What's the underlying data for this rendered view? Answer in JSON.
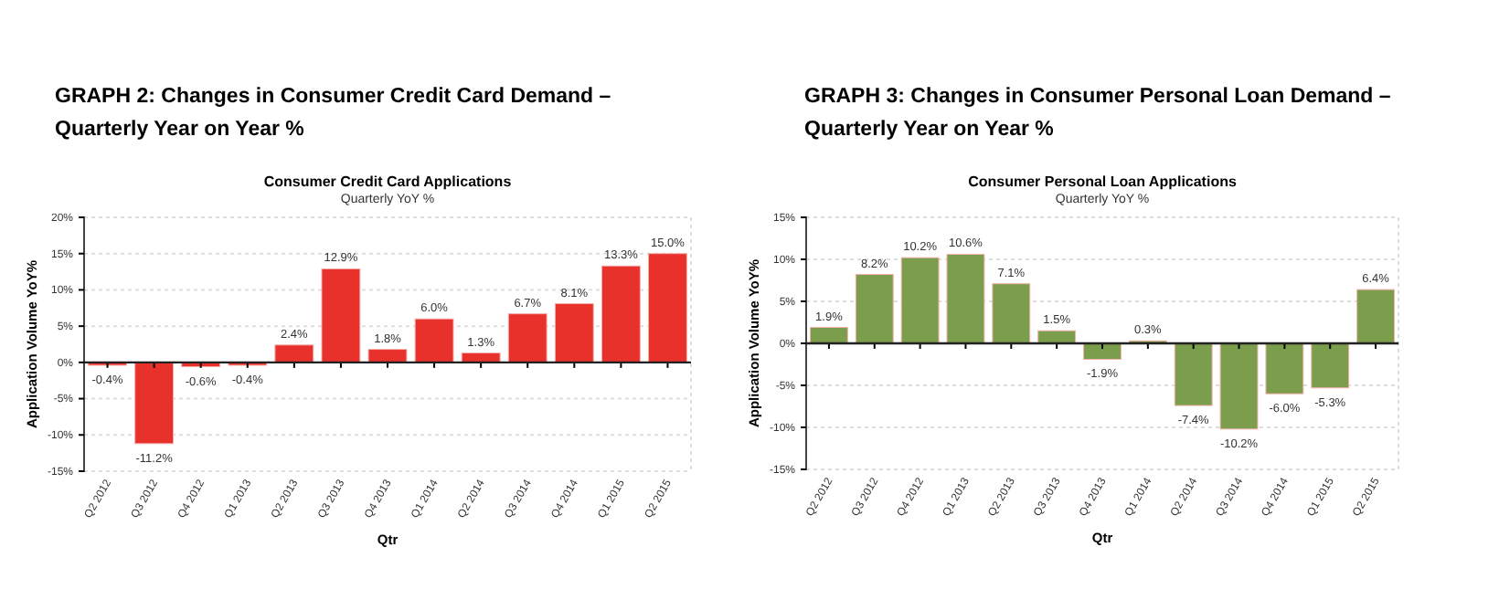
{
  "chart_data": [
    {
      "type": "bar",
      "title": "Consumer Credit Card Applications",
      "subtitle": "Quarterly YoY %",
      "annotations": [
        "GRAPH 2: Changes in Consumer Credit Card Demand – Quarterly Year on Year %"
      ],
      "xlabel": "Qtr",
      "ylabel": "Application Volume YoY%",
      "categories": [
        "Q2 2012",
        "Q3 2012",
        "Q4 2012",
        "Q1 2013",
        "Q2 2013",
        "Q3 2013",
        "Q4 2013",
        "Q1 2014",
        "Q2 2014",
        "Q3 2014",
        "Q4 2014",
        "Q1 2015",
        "Q2 2015"
      ],
      "values": [
        -0.4,
        -11.2,
        -0.6,
        -0.4,
        2.4,
        12.9,
        1.8,
        6.0,
        1.3,
        6.7,
        8.1,
        13.3,
        15.0
      ],
      "value_labels": [
        "-0.4%",
        "-11.2%",
        "-0.6%",
        "-0.4%",
        "2.4%",
        "12.9%",
        "1.8%",
        "6.0%",
        "1.3%",
        "6.7%",
        "8.1%",
        "13.3%",
        "15.0%"
      ],
      "color": "#e8312b",
      "ylim": [
        -15,
        20
      ],
      "ref_lines": [
        {
          "axis": "y",
          "value": 0,
          "color": "#222222"
        }
      ],
      "yticks": [
        {
          "value": -15,
          "label": "-15%"
        },
        {
          "value": -10,
          "label": "-10%"
        },
        {
          "value": -5,
          "label": "-5%"
        },
        {
          "value": 0,
          "label": "0%"
        },
        {
          "value": 5,
          "label": "5%"
        },
        {
          "value": 10,
          "label": "10%"
        },
        {
          "value": 15,
          "label": "15%"
        },
        {
          "value": 20,
          "label": "20%"
        }
      ],
      "grid": "y"
    },
    {
      "type": "bar",
      "title": "Consumer Personal Loan Applications",
      "subtitle": "Quarterly YoY %",
      "annotations": [
        "GRAPH 3: Changes in Consumer Personal Loan Demand – Quarterly Year on Year %"
      ],
      "xlabel": "Qtr",
      "ylabel": "Application Volume YoY%",
      "categories": [
        "Q2 2012",
        "Q3 2012",
        "Q4 2012",
        "Q1 2013",
        "Q2 2013",
        "Q3 2013",
        "Q4 2013",
        "Q1 2014",
        "Q2 2014",
        "Q3 2014",
        "Q4 2014",
        "Q1 2015",
        "Q2 2015"
      ],
      "values": [
        1.9,
        8.2,
        10.2,
        10.6,
        7.1,
        1.5,
        -1.9,
        0.3,
        -7.4,
        -10.2,
        -6.0,
        -5.3,
        6.4
      ],
      "value_labels": [
        "1.9%",
        "8.2%",
        "10.2%",
        "10.6%",
        "7.1%",
        "1.5%",
        "-1.9%",
        "0.3%",
        "-7.4%",
        "-10.2%",
        "-6.0%",
        "-5.3%",
        "6.4%"
      ],
      "color": "#7b9e4c",
      "ylim": [
        -15,
        15
      ],
      "ref_lines": [
        {
          "axis": "y",
          "value": 0,
          "color": "#222222"
        }
      ],
      "yticks": [
        {
          "value": -15,
          "label": "-15%"
        },
        {
          "value": -10,
          "label": "-10%"
        },
        {
          "value": -5,
          "label": "-5%"
        },
        {
          "value": 0,
          "label": "0%"
        },
        {
          "value": 5,
          "label": "5%"
        },
        {
          "value": 10,
          "label": "10%"
        },
        {
          "value": 15,
          "label": "15%"
        }
      ],
      "grid": "y"
    }
  ]
}
